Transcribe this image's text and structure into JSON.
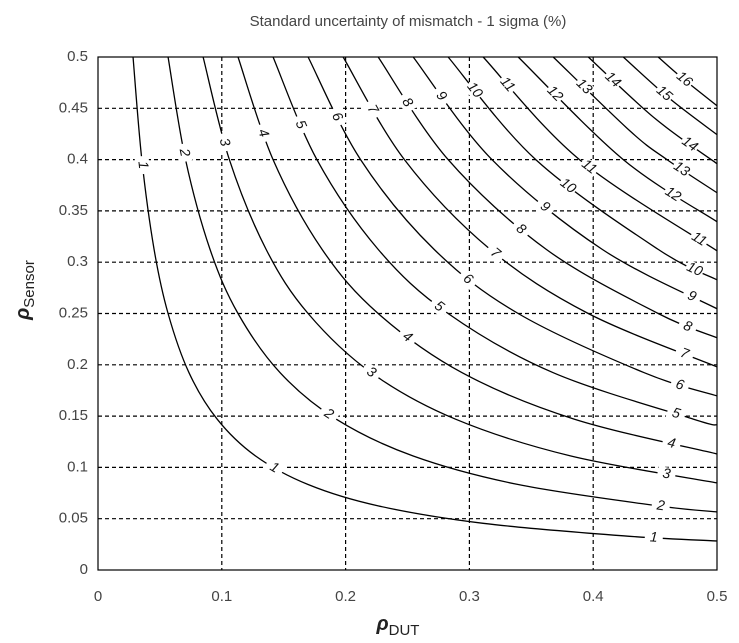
{
  "chart_data": {
    "type": "contour",
    "title": "Standard uncertainty of mismatch - 1 sigma (%)",
    "xlabel": "ρ",
    "xlabel_sub": "DUT",
    "ylabel": "ρ",
    "ylabel_sub": "Sensor",
    "xlim": [
      0,
      0.5
    ],
    "ylim": [
      0,
      0.5
    ],
    "xticks": [
      0,
      0.1,
      0.2,
      0.3,
      0.4,
      0.5
    ],
    "yticks": [
      0,
      0.05,
      0.1,
      0.15,
      0.2,
      0.25,
      0.3,
      0.35,
      0.4,
      0.45,
      0.5
    ],
    "grid": true,
    "color": "#000000",
    "series": [
      {
        "name": "1",
        "x": [
          0.0283,
          0.0354,
          0.0453,
          0.0566,
          0.0735,
          0.0962,
          0.1273,
          0.1697,
          0.2263,
          0.3111,
          0.4243,
          0.5
        ],
        "y": [
          0.5,
          0.4,
          0.3125,
          0.25,
          0.1923,
          0.1471,
          0.1111,
          0.0833,
          0.0625,
          0.0455,
          0.0333,
          0.0283
        ]
      },
      {
        "name": "2",
        "x": [
          0.0566,
          0.0707,
          0.0905,
          0.1131,
          0.1471,
          0.1923,
          0.2546,
          0.3394,
          0.4525,
          0.5
        ],
        "y": [
          0.5,
          0.4,
          0.3125,
          0.25,
          0.1923,
          0.1471,
          0.1111,
          0.0833,
          0.0625,
          0.0566
        ]
      },
      {
        "name": "3",
        "x": [
          0.0849,
          0.1061,
          0.1358,
          0.1697,
          0.2207,
          0.2886,
          0.382,
          0.5
        ],
        "y": [
          0.5,
          0.4,
          0.3125,
          0.25,
          0.1923,
          0.1471,
          0.1111,
          0.0849
        ]
      },
      {
        "name": "4",
        "x": [
          0.1131,
          0.1414,
          0.181,
          0.2263,
          0.2941,
          0.3846,
          0.5
        ],
        "y": [
          0.5,
          0.4,
          0.3125,
          0.25,
          0.1923,
          0.1471,
          0.1131
        ]
      },
      {
        "name": "5",
        "x": [
          0.1414,
          0.1768,
          0.2263,
          0.2828,
          0.3677,
          0.4808,
          0.5
        ],
        "y": [
          0.5,
          0.4,
          0.3125,
          0.25,
          0.1923,
          0.1471,
          0.1414
        ]
      },
      {
        "name": "6",
        "x": [
          0.1697,
          0.2121,
          0.2715,
          0.3394,
          0.4412,
          0.5
        ],
        "y": [
          0.5,
          0.4,
          0.3125,
          0.25,
          0.1923,
          0.1697
        ]
      },
      {
        "name": "7",
        "x": [
          0.198,
          0.2475,
          0.3168,
          0.396,
          0.5
        ],
        "y": [
          0.5,
          0.4,
          0.3125,
          0.25,
          0.198
        ]
      },
      {
        "name": "8",
        "x": [
          0.2263,
          0.2828,
          0.3621,
          0.4525,
          0.5
        ],
        "y": [
          0.5,
          0.4,
          0.3125,
          0.25,
          0.2263
        ]
      },
      {
        "name": "9",
        "x": [
          0.2546,
          0.3182,
          0.4073,
          0.5
        ],
        "y": [
          0.5,
          0.4,
          0.3125,
          0.2546
        ]
      },
      {
        "name": "10",
        "x": [
          0.2828,
          0.3536,
          0.4525,
          0.5
        ],
        "y": [
          0.5,
          0.4,
          0.3125,
          0.2828
        ]
      },
      {
        "name": "11",
        "x": [
          0.3111,
          0.3889,
          0.5
        ],
        "y": [
          0.5,
          0.4,
          0.3111
        ]
      },
      {
        "name": "12",
        "x": [
          0.3394,
          0.4243,
          0.5
        ],
        "y": [
          0.5,
          0.4,
          0.3394
        ]
      },
      {
        "name": "13",
        "x": [
          0.3677,
          0.43,
          0.4596,
          0.5
        ],
        "y": [
          0.5,
          0.4276,
          0.4,
          0.3677
        ]
      },
      {
        "name": "14",
        "x": [
          0.396,
          0.45,
          0.5
        ],
        "y": [
          0.5,
          0.44,
          0.396
        ]
      },
      {
        "name": "15",
        "x": [
          0.4243,
          0.4612,
          0.5
        ],
        "y": [
          0.5,
          0.46,
          0.4243
        ]
      },
      {
        "name": "16",
        "x": [
          0.4525,
          0.4714,
          0.5
        ],
        "y": [
          0.5,
          0.48,
          0.4525
        ]
      }
    ]
  }
}
